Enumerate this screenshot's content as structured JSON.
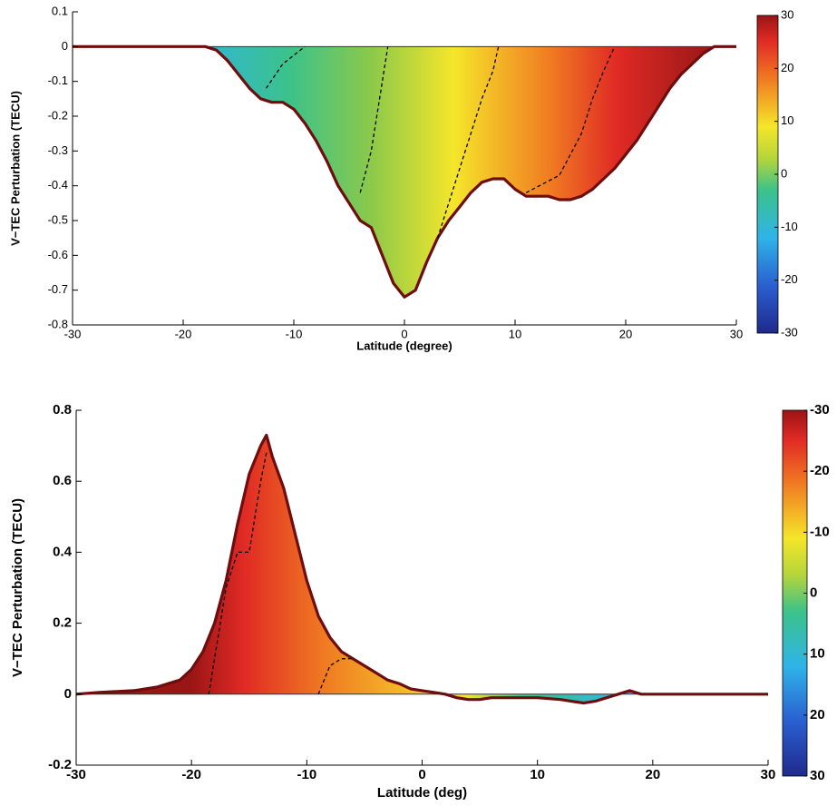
{
  "chart_data": [
    {
      "type": "area",
      "y_label": "V−TEC Perturbation (TECU)",
      "x_label": "Latitude (degree)",
      "xlim": [
        -30,
        30
      ],
      "xticks": [
        -30,
        -20,
        -10,
        0,
        10,
        20,
        30
      ],
      "ylim": [
        -0.8,
        0.1
      ],
      "yticks": [
        -0.8,
        -0.7,
        -0.6,
        -0.5,
        -0.4,
        -0.3,
        -0.2,
        -0.1,
        0,
        0.1
      ],
      "clim": [
        -30,
        30
      ],
      "cticks": [
        -30,
        -20,
        -10,
        0,
        10,
        20,
        30
      ],
      "series": [
        {
          "color": "#6e0d0d",
          "dash": false,
          "x": [
            -30,
            -20,
            -18,
            -17,
            -16,
            -15,
            -14,
            -13,
            -12,
            -11,
            -10,
            -9,
            -8,
            -7,
            -6,
            -5,
            -4,
            -3,
            -2,
            -1,
            0,
            1,
            2,
            3,
            4,
            5,
            6,
            7,
            8,
            9,
            10,
            11,
            12,
            13,
            14,
            15,
            16,
            17,
            18,
            19,
            20,
            21,
            22,
            23,
            24,
            25,
            26,
            27,
            28,
            30
          ],
          "values": [
            0,
            0,
            0,
            -0.01,
            -0.04,
            -0.08,
            -0.12,
            -0.15,
            -0.16,
            -0.16,
            -0.18,
            -0.22,
            -0.27,
            -0.33,
            -0.4,
            -0.45,
            -0.5,
            -0.52,
            -0.6,
            -0.68,
            -0.72,
            -0.7,
            -0.62,
            -0.55,
            -0.5,
            -0.46,
            -0.42,
            -0.39,
            -0.38,
            -0.38,
            -0.41,
            -0.43,
            -0.43,
            -0.43,
            -0.44,
            -0.44,
            -0.43,
            -0.41,
            -0.38,
            -0.35,
            -0.31,
            -0.27,
            -0.22,
            -0.17,
            -0.12,
            -0.08,
            -0.05,
            -0.02,
            0,
            0
          ]
        },
        {
          "color": "#000000",
          "dash": true,
          "x": [
            -12.5,
            -11,
            -9
          ],
          "values": [
            -0.12,
            -0.05,
            0
          ]
        },
        {
          "color": "#000000",
          "dash": true,
          "x": [
            -4,
            -3,
            -2.5,
            -2,
            -1.5
          ],
          "values": [
            -0.42,
            -0.3,
            -0.2,
            -0.1,
            0
          ]
        },
        {
          "color": "#000000",
          "dash": true,
          "x": [
            3,
            5,
            6,
            7,
            8,
            8.5
          ],
          "values": [
            -0.55,
            -0.35,
            -0.25,
            -0.15,
            -0.07,
            0
          ]
        },
        {
          "color": "#000000",
          "dash": true,
          "x": [
            11,
            14,
            16,
            17,
            18,
            19
          ],
          "values": [
            -0.42,
            -0.37,
            -0.25,
            -0.15,
            -0.07,
            0
          ]
        }
      ]
    },
    {
      "type": "area",
      "y_label": "V−TEC Perturbation (TECU)",
      "x_label": "Latitude (deg)",
      "xlim": [
        -30,
        30
      ],
      "xticks": [
        -30,
        -20,
        -10,
        0,
        10,
        20,
        30
      ],
      "ylim": [
        -0.2,
        0.8
      ],
      "yticks": [
        -0.2,
        0,
        0.2,
        0.4,
        0.6,
        0.8
      ],
      "clim": [
        30,
        -30
      ],
      "cticks": [
        -30,
        -20,
        -10,
        0,
        10,
        20,
        30
      ],
      "series": [
        {
          "color": "#6e0d0d",
          "dash": false,
          "x": [
            -30,
            -28,
            -25,
            -23,
            -21,
            -20,
            -19,
            -18,
            -17,
            -16,
            -15,
            -14,
            -13.5,
            -13,
            -12,
            -11,
            -10,
            -9,
            -8,
            -7,
            -6,
            -5,
            -4,
            -3,
            -2,
            -1,
            0,
            1,
            2,
            3,
            4,
            5,
            6,
            8,
            10,
            12,
            14,
            15,
            16,
            17,
            18,
            19,
            20,
            30
          ],
          "values": [
            0,
            0.005,
            0.01,
            0.02,
            0.04,
            0.07,
            0.12,
            0.2,
            0.32,
            0.48,
            0.62,
            0.7,
            0.73,
            0.67,
            0.58,
            0.45,
            0.32,
            0.22,
            0.16,
            0.12,
            0.1,
            0.08,
            0.06,
            0.04,
            0.03,
            0.015,
            0.01,
            0.005,
            0,
            -0.01,
            -0.015,
            -0.015,
            -0.01,
            -0.01,
            -0.01,
            -0.015,
            -0.025,
            -0.02,
            -0.01,
            0,
            0.01,
            0,
            0,
            0
          ]
        },
        {
          "color": "#000000",
          "dash": true,
          "x": [
            -18.5,
            -17,
            -16,
            -15,
            -14,
            -13.5
          ],
          "values": [
            0,
            0.3,
            0.4,
            0.4,
            0.6,
            0.68
          ]
        },
        {
          "color": "#000000",
          "dash": true,
          "x": [
            -9,
            -8,
            -7,
            -6
          ],
          "values": [
            0,
            0.08,
            0.1,
            0.1
          ]
        }
      ]
    }
  ]
}
